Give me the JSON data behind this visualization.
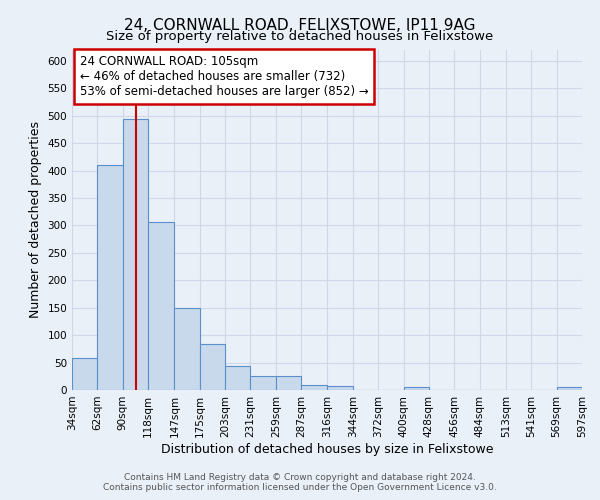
{
  "title_line1": "24, CORNWALL ROAD, FELIXSTOWE, IP11 9AG",
  "title_line2": "Size of property relative to detached houses in Felixstowe",
  "xlabel": "Distribution of detached houses by size in Felixstowe",
  "ylabel": "Number of detached properties",
  "bar_edges": [
    34,
    62,
    90,
    118,
    147,
    175,
    203,
    231,
    259,
    287,
    316,
    344,
    372,
    400,
    428,
    456,
    484,
    513,
    541,
    569,
    597
  ],
  "bar_heights": [
    58,
    410,
    495,
    307,
    150,
    83,
    44,
    25,
    25,
    10,
    8,
    0,
    0,
    5,
    0,
    0,
    0,
    0,
    0,
    5
  ],
  "bar_color": "#c9d9ec",
  "bar_edge_color": "#5b8fc9",
  "bar_linewidth": 0.8,
  "vline_x": 105,
  "vline_color": "#cc0000",
  "vline_linewidth": 1.5,
  "annotation_title": "24 CORNWALL ROAD: 105sqm",
  "annotation_line1": "← 46% of detached houses are smaller (732)",
  "annotation_line2": "53% of semi-detached houses are larger (852) →",
  "annotation_box_color": "#cc0000",
  "annotation_fill_color": "white",
  "ylim": [
    0,
    620
  ],
  "yticks": [
    0,
    50,
    100,
    150,
    200,
    250,
    300,
    350,
    400,
    450,
    500,
    550,
    600
  ],
  "tick_labels": [
    "34sqm",
    "62sqm",
    "90sqm",
    "118sqm",
    "147sqm",
    "175sqm",
    "203sqm",
    "231sqm",
    "259sqm",
    "287sqm",
    "316sqm",
    "344sqm",
    "372sqm",
    "400sqm",
    "428sqm",
    "456sqm",
    "484sqm",
    "513sqm",
    "541sqm",
    "569sqm",
    "597sqm"
  ],
  "grid_color": "#d0d8e8",
  "background_color": "#eaf0f8",
  "footer_line1": "Contains HM Land Registry data © Crown copyright and database right 2024.",
  "footer_line2": "Contains public sector information licensed under the Open Government Licence v3.0.",
  "title_fontsize": 11,
  "subtitle_fontsize": 9.5,
  "axis_label_fontsize": 9,
  "tick_fontsize": 7.5,
  "annotation_fontsize": 8.5,
  "footer_fontsize": 6.5
}
